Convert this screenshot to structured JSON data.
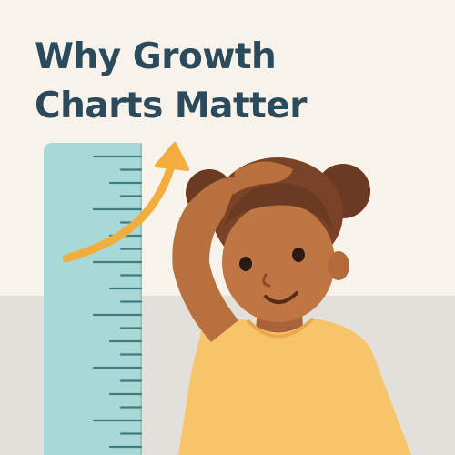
{
  "heading": {
    "line1": "Why Growth",
    "line2": "Charts Matter"
  },
  "colors": {
    "background": "#f8f3ea",
    "floor": "#e3e0db",
    "title": "#2b4a5b",
    "ruler": "#a9d9d6",
    "ruler_ticks": "#3f7d82",
    "arrow": "#f2ad3f",
    "shirt": "#f7c46a",
    "skin": "#b9703f",
    "hair": "#6b3a22"
  },
  "icons": [
    "height-ruler-icon",
    "growth-arrow-icon",
    "child-illustration"
  ]
}
